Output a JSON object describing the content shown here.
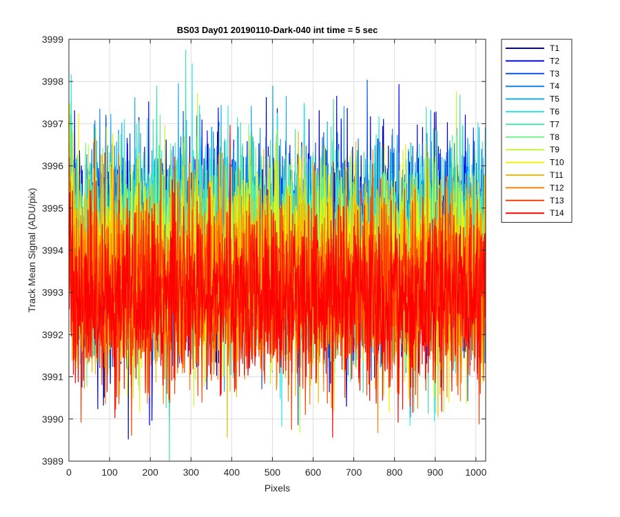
{
  "chart_data": {
    "type": "line",
    "title": "BS03 Day01 20190110-Dark-040 int time = 5 sec",
    "xlabel": "Pixels",
    "ylabel": "Track Mean Signal (ADU/pix)",
    "xlim": [
      0,
      1024
    ],
    "ylim": [
      3989,
      3999
    ],
    "xticks": [
      0,
      100,
      200,
      300,
      400,
      500,
      600,
      700,
      800,
      900,
      1000
    ],
    "yticks": [
      3989,
      3990,
      3991,
      3992,
      3993,
      3994,
      3995,
      3996,
      3997,
      3998,
      3999
    ],
    "grid": true,
    "legend_position": "outside-top-right",
    "points_per_series": 1024,
    "series": [
      {
        "name": "T1",
        "color": "#0000B3",
        "mean": 3993.9,
        "noise_sd": 1.25
      },
      {
        "name": "T2",
        "color": "#0000FF",
        "mean": 3994.0,
        "noise_sd": 1.25
      },
      {
        "name": "T3",
        "color": "#0B50E8",
        "mean": 3994.0,
        "noise_sd": 1.25
      },
      {
        "name": "T4",
        "color": "#0D7FE9",
        "mean": 3994.0,
        "noise_sd": 1.2
      },
      {
        "name": "T5",
        "color": "#14AAF2",
        "mean": 3994.1,
        "noise_sd": 1.2
      },
      {
        "name": "T6",
        "color": "#2BE8EC",
        "mean": 3994.1,
        "noise_sd": 1.2
      },
      {
        "name": "T7",
        "color": "#45E0B4",
        "mean": 3994.0,
        "noise_sd": 1.2
      },
      {
        "name": "T8",
        "color": "#6EF38A",
        "mean": 3993.9,
        "noise_sd": 1.15
      },
      {
        "name": "T9",
        "color": "#C4F532",
        "mean": 3993.7,
        "noise_sd": 1.15
      },
      {
        "name": "T10",
        "color": "#F0F000",
        "mean": 3993.6,
        "noise_sd": 1.1
      },
      {
        "name": "T11",
        "color": "#F6B800",
        "mean": 3993.4,
        "noise_sd": 1.1
      },
      {
        "name": "T12",
        "color": "#FF7F00",
        "mean": 3993.2,
        "noise_sd": 1.1
      },
      {
        "name": "T13",
        "color": "#FF3C00",
        "mean": 3993.0,
        "noise_sd": 1.1
      },
      {
        "name": "T14",
        "color": "#FF0000",
        "mean": 3992.9,
        "noise_sd": 1.05
      }
    ]
  }
}
